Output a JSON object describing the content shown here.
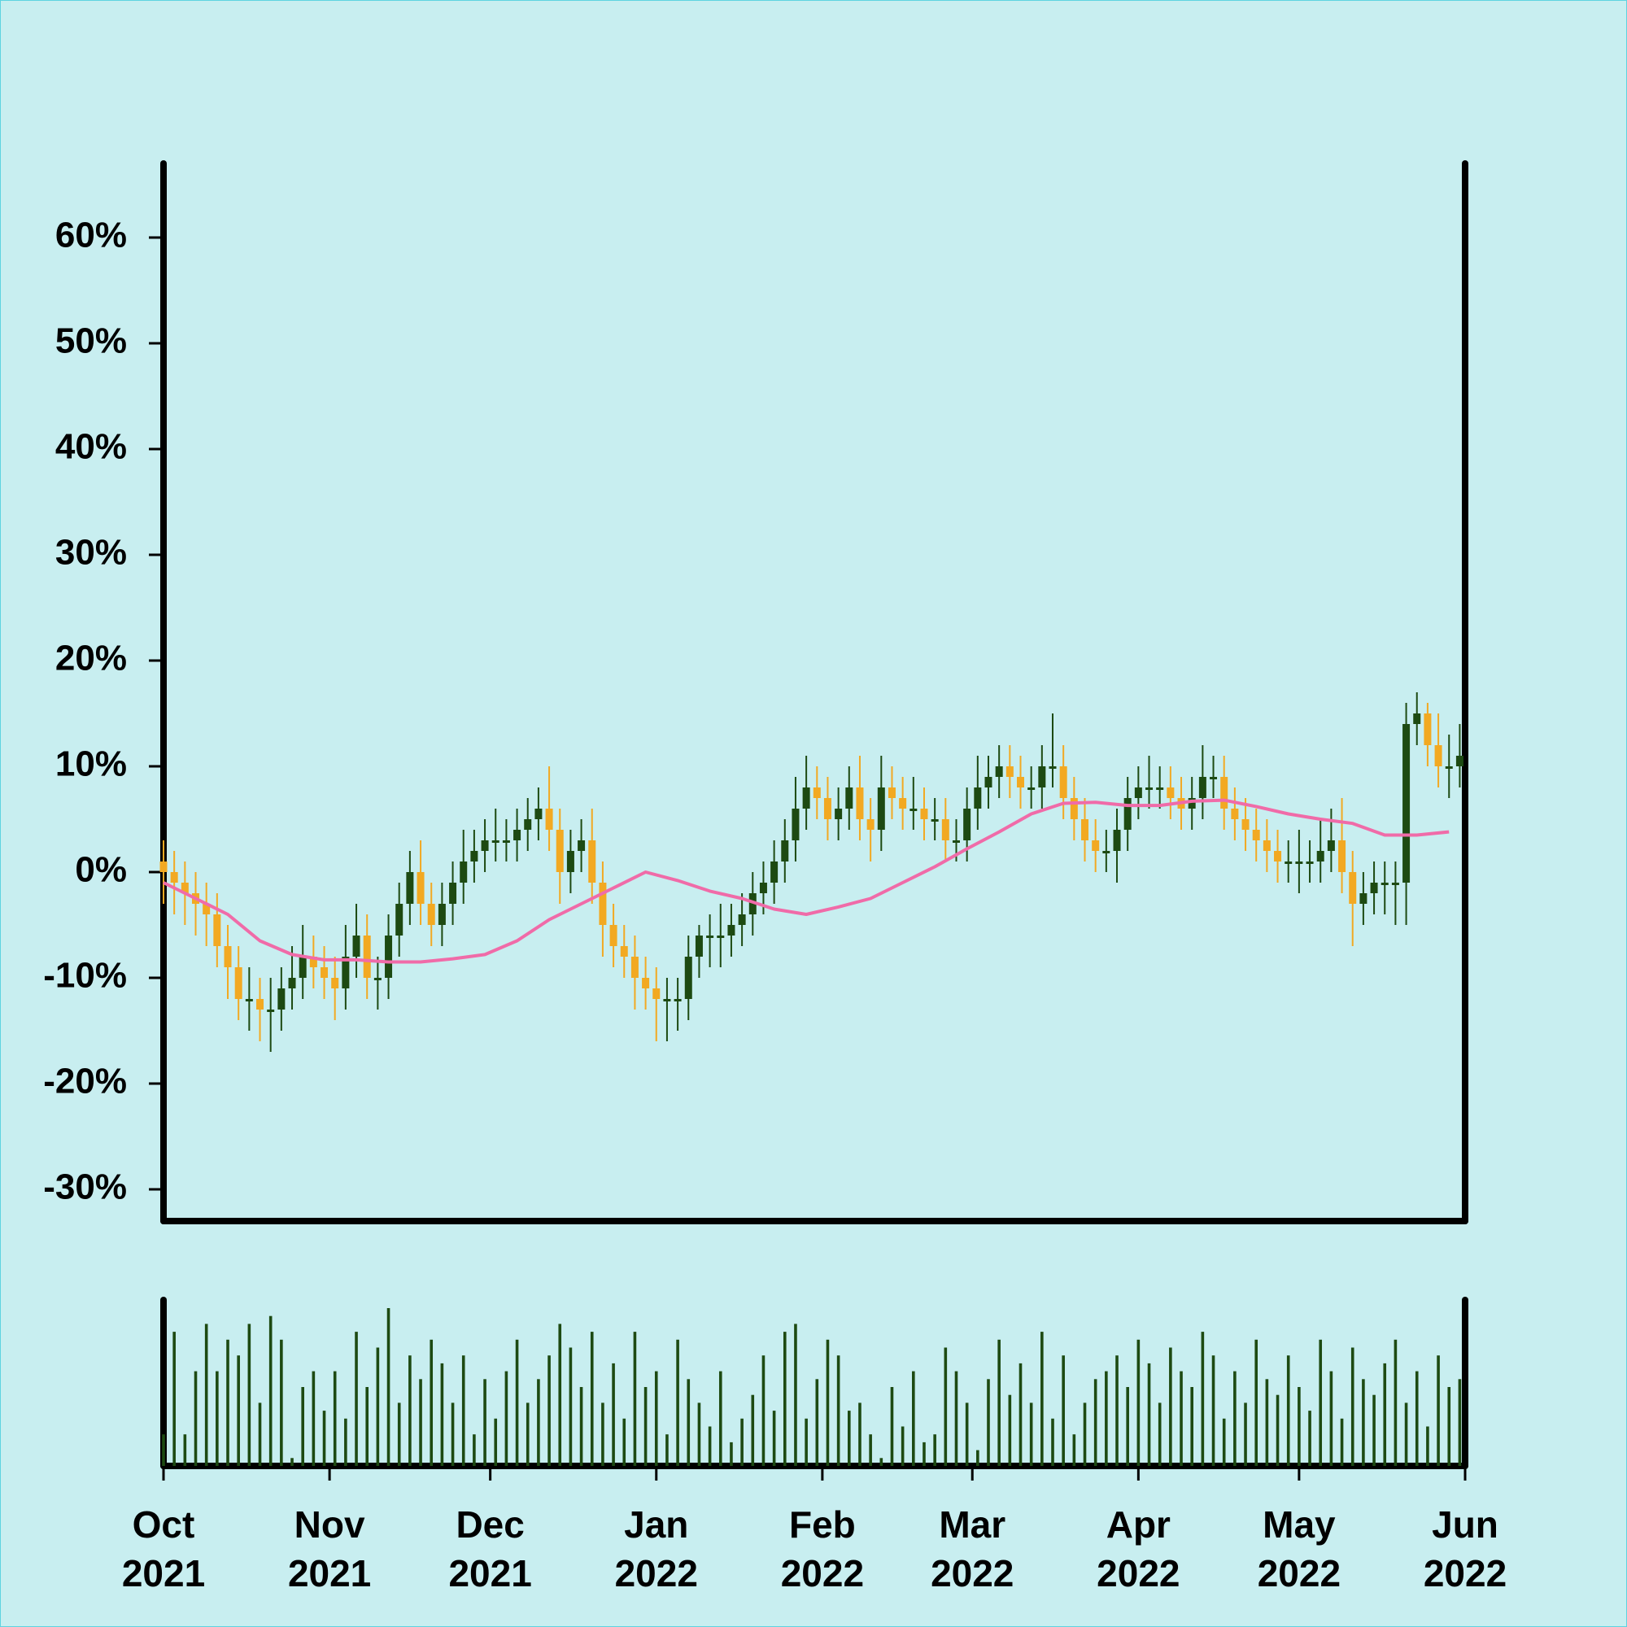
{
  "chart_data": {
    "type": "candlestick",
    "x": [
      0,
      2,
      4,
      6,
      8,
      10,
      12,
      14,
      16,
      18,
      20,
      22,
      24,
      26,
      28,
      30,
      32,
      34,
      36,
      38,
      40,
      42,
      44,
      46,
      48,
      50,
      52,
      54,
      56,
      58,
      60,
      62,
      64,
      66,
      68,
      70,
      72,
      74,
      76,
      78,
      80,
      82,
      84,
      86,
      88,
      90,
      92,
      94,
      96,
      98,
      100,
      102,
      104,
      106,
      108,
      110,
      112,
      114,
      116,
      118,
      120,
      122,
      124,
      126,
      128,
      130,
      132,
      134,
      136,
      138,
      140,
      142,
      144,
      146,
      148,
      150,
      152,
      154,
      156,
      158,
      160,
      162,
      164,
      166,
      168,
      170,
      172,
      174,
      176,
      178,
      180,
      182,
      184,
      186,
      188,
      190,
      192,
      194,
      196,
      198,
      200,
      202,
      204,
      206,
      208,
      210,
      212,
      214,
      216,
      218,
      220,
      222,
      224,
      226,
      228,
      230,
      232,
      234,
      236,
      238,
      240,
      242
    ],
    "xlim": [
      0,
      243
    ],
    "xticks": [
      {
        "value": 0,
        "label": "Oct\n2021"
      },
      {
        "value": 31,
        "label": "Nov\n2021"
      },
      {
        "value": 61,
        "label": "Dec\n2021"
      },
      {
        "value": 92,
        "label": "Jan\n2022"
      },
      {
        "value": 123,
        "label": "Feb\n2022"
      },
      {
        "value": 151,
        "label": "Mar\n2022"
      },
      {
        "value": 182,
        "label": "Apr\n2022"
      },
      {
        "value": 212,
        "label": "May\n2022"
      },
      {
        "value": 243,
        "label": "Jun\n2022"
      }
    ],
    "ylim": [
      -33,
      67
    ],
    "yticks": [
      {
        "value": -30,
        "label": "-30%"
      },
      {
        "value": -20,
        "label": "-20%"
      },
      {
        "value": -10,
        "label": "-10%"
      },
      {
        "value": 0,
        "label": "0%"
      },
      {
        "value": 10,
        "label": "10%"
      },
      {
        "value": 20,
        "label": "20%"
      },
      {
        "value": 30,
        "label": "30%"
      },
      {
        "value": 40,
        "label": "40%"
      },
      {
        "value": 50,
        "label": "50%"
      },
      {
        "value": 60,
        "label": "60%"
      }
    ],
    "open": [
      1,
      0,
      -1,
      -2,
      -3,
      -4,
      -7,
      -9,
      -12,
      -12,
      -13,
      -13,
      -11,
      -10,
      -8,
      -9,
      -10,
      -11,
      -8,
      -6,
      -10,
      -10,
      -6,
      -3,
      0,
      -3,
      -5,
      -3,
      -1,
      1,
      2,
      3,
      3,
      3,
      4,
      5,
      6,
      4,
      0,
      2,
      3,
      -1,
      -5,
      -7,
      -8,
      -10,
      -11,
      -12,
      -12,
      -12,
      -8,
      -6,
      -6,
      -6,
      -5,
      -4,
      -2,
      -1,
      1,
      3,
      6,
      8,
      7,
      5,
      6,
      8,
      5,
      4,
      8,
      7,
      6,
      6,
      5,
      5,
      3,
      3,
      6,
      8,
      9,
      10,
      9,
      8,
      8,
      10,
      10,
      7,
      5,
      3,
      2,
      2,
      4,
      7,
      8,
      8,
      8,
      7,
      6,
      7,
      9,
      9,
      6,
      5,
      4,
      3,
      2,
      1,
      1,
      1,
      1,
      2,
      3,
      0,
      -3,
      -2,
      -1,
      -1,
      -1,
      14,
      15,
      12,
      10,
      10
    ],
    "high": [
      3,
      2,
      1,
      0,
      -1,
      -2,
      -5,
      -7,
      -9,
      -10,
      -10,
      -9,
      -7,
      -5,
      -6,
      -7,
      -8,
      -5,
      -3,
      -4,
      -8,
      -4,
      -1,
      2,
      3,
      -1,
      -1,
      1,
      4,
      4,
      5,
      6,
      5,
      6,
      7,
      8,
      10,
      6,
      4,
      5,
      6,
      1,
      -3,
      -5,
      -6,
      -8,
      -9,
      -10,
      -10,
      -6,
      -5,
      -4,
      -3,
      -3,
      -2,
      0,
      1,
      3,
      5,
      9,
      11,
      10,
      9,
      8,
      10,
      11,
      7,
      11,
      10,
      9,
      9,
      8,
      7,
      7,
      5,
      8,
      11,
      11,
      12,
      12,
      11,
      10,
      12,
      15,
      12,
      9,
      7,
      5,
      4,
      6,
      9,
      10,
      11,
      10,
      10,
      9,
      9,
      12,
      11,
      11,
      8,
      7,
      6,
      5,
      4,
      3,
      4,
      3,
      5,
      6,
      7,
      2,
      0,
      1,
      1,
      1,
      16,
      17,
      16,
      15,
      13,
      14
    ],
    "low": [
      -3,
      -4,
      -5,
      -6,
      -7,
      -9,
      -12,
      -14,
      -15,
      -16,
      -17,
      -15,
      -13,
      -12,
      -11,
      -12,
      -14,
      -13,
      -10,
      -12,
      -13,
      -12,
      -8,
      -5,
      -5,
      -7,
      -7,
      -5,
      -3,
      -1,
      0,
      1,
      1,
      1,
      2,
      3,
      2,
      -3,
      -2,
      0,
      -3,
      -8,
      -9,
      -10,
      -13,
      -13,
      -16,
      -16,
      -15,
      -14,
      -10,
      -9,
      -9,
      -8,
      -7,
      -6,
      -4,
      -3,
      -1,
      1,
      4,
      5,
      3,
      3,
      4,
      3,
      1,
      2,
      5,
      4,
      4,
      3,
      3,
      1,
      1,
      1,
      4,
      6,
      7,
      7,
      6,
      6,
      6,
      8,
      5,
      3,
      1,
      0,
      0,
      -1,
      2,
      5,
      6,
      6,
      5,
      4,
      4,
      5,
      7,
      4,
      3,
      2,
      1,
      0,
      -1,
      -1,
      -2,
      -1,
      -1,
      0,
      -2,
      -7,
      -5,
      -4,
      -4,
      -5,
      -5,
      12,
      10,
      8,
      7,
      8
    ],
    "close": [
      0,
      -1,
      -2,
      -3,
      -4,
      -7,
      -9,
      -12,
      -12,
      -13,
      -13,
      -11,
      -10,
      -8,
      -9,
      -10,
      -11,
      -8,
      -6,
      -10,
      -10,
      -6,
      -3,
      0,
      -3,
      -5,
      -3,
      -1,
      1,
      2,
      3,
      3,
      3,
      4,
      5,
      6,
      4,
      0,
      2,
      3,
      -1,
      -5,
      -7,
      -8,
      -10,
      -11,
      -12,
      -12,
      -12,
      -8,
      -6,
      -6,
      -6,
      -5,
      -4,
      -2,
      -1,
      1,
      3,
      6,
      8,
      7,
      5,
      6,
      8,
      5,
      4,
      8,
      7,
      6,
      6,
      5,
      5,
      3,
      3,
      6,
      8,
      9,
      10,
      9,
      8,
      8,
      10,
      10,
      7,
      5,
      3,
      2,
      2,
      4,
      7,
      8,
      8,
      8,
      7,
      6,
      7,
      9,
      9,
      6,
      5,
      4,
      3,
      2,
      1,
      1,
      1,
      1,
      2,
      3,
      0,
      -3,
      -2,
      -1,
      -1,
      -1,
      14,
      15,
      12,
      10,
      10,
      11
    ],
    "up_color": "#1d4a12",
    "down_color": "#f2a922",
    "volume": {
      "color": "#1d4a12",
      "ylim": [
        0,
        100
      ],
      "values": [
        20,
        85,
        20,
        60,
        90,
        60,
        80,
        70,
        90,
        40,
        95,
        80,
        5,
        50,
        60,
        35,
        60,
        30,
        85,
        50,
        75,
        100,
        40,
        70,
        55,
        80,
        65,
        40,
        70,
        20,
        55,
        30,
        60,
        80,
        40,
        55,
        70,
        90,
        75,
        50,
        85,
        40,
        65,
        30,
        85,
        50,
        60,
        20,
        80,
        55,
        40,
        25,
        60,
        15,
        30,
        45,
        70,
        35,
        85,
        90,
        30,
        55,
        80,
        70,
        35,
        40,
        20,
        5,
        50,
        25,
        60,
        15,
        20,
        75,
        60,
        40,
        10,
        55,
        80,
        45,
        65,
        40,
        85,
        30,
        70,
        20,
        40,
        55,
        60,
        70,
        50,
        80,
        65,
        40,
        75,
        60,
        50,
        85,
        70,
        30,
        60,
        40,
        80,
        55,
        45,
        70,
        50,
        35,
        80,
        60,
        30,
        75,
        55,
        45,
        65,
        80,
        40,
        60,
        25,
        70,
        50,
        55
      ]
    },
    "moving_average": {
      "color": "#f06ba8",
      "x": [
        0,
        6,
        12,
        18,
        24,
        30,
        36,
        42,
        48,
        54,
        60,
        66,
        72,
        78,
        84,
        90,
        96,
        102,
        108,
        114,
        120,
        126,
        132,
        138,
        144,
        150,
        156,
        162,
        168,
        174,
        180,
        186,
        192,
        198,
        204,
        210,
        216,
        222,
        228,
        234,
        240
      ],
      "values": [
        -1,
        -2.5,
        -4,
        -6.5,
        -7.8,
        -8.3,
        -8.3,
        -8.5,
        -8.5,
        -8.2,
        -7.8,
        -6.5,
        -4.5,
        -3,
        -1.5,
        0,
        -0.8,
        -1.8,
        -2.5,
        -3.5,
        -4,
        -3.3,
        -2.5,
        -1,
        0.5,
        2.2,
        3.8,
        5.5,
        6.5,
        6.6,
        6.3,
        6.3,
        6.7,
        6.8,
        6.2,
        5.5,
        5,
        4.6,
        3.5,
        3.5,
        3.8
      ]
    }
  }
}
